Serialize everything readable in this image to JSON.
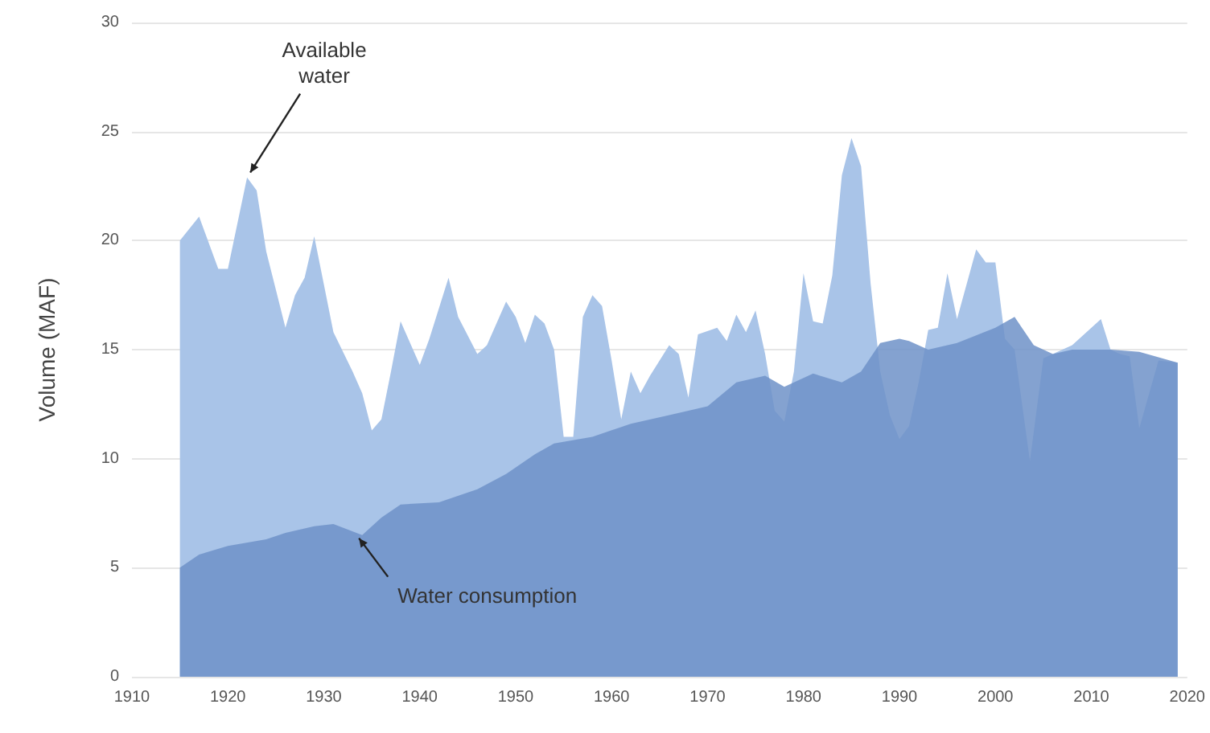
{
  "chart_data": {
    "type": "area",
    "ylabel": "Volume (MAF)",
    "xlim": [
      1910,
      2020
    ],
    "xticks": [
      1910,
      1920,
      1930,
      1940,
      1950,
      1960,
      1970,
      1980,
      1990,
      2000,
      2010,
      2020
    ],
    "ylim": [
      0,
      30
    ],
    "yticks": [
      0,
      5,
      10,
      15,
      20,
      25,
      30
    ],
    "grid": "y",
    "annotations": [
      {
        "text": "Available\nwater",
        "x": 1922,
        "y": 22.9
      },
      {
        "text": "Water consumption",
        "x": 1934,
        "y": 6.5
      }
    ],
    "series": [
      {
        "color": "#a9c4e8",
        "x": [
          1915,
          1917,
          1919,
          1920,
          1922,
          1923,
          1924,
          1926,
          1927,
          1928,
          1929,
          1930,
          1931,
          1933,
          1934,
          1935,
          1936,
          1937,
          1938,
          1940,
          1941,
          1943,
          1944,
          1946,
          1947,
          1949,
          1950,
          1951,
          1952,
          1953,
          1954,
          1955,
          1956,
          1957,
          1958,
          1959,
          1960,
          1961,
          1962,
          1963,
          1964,
          1965,
          1966,
          1967,
          1968,
          1969,
          1971,
          1972,
          1973,
          1974,
          1975,
          1976,
          1977,
          1978,
          1979,
          1980,
          1981,
          1982,
          1983,
          1984,
          1985,
          1986,
          1987,
          1988,
          1989,
          1990,
          1991,
          1992,
          1993,
          1994,
          1995,
          1996,
          1998,
          1999,
          2000,
          2001,
          2002,
          2003.6,
          2005,
          2008,
          2011,
          2012,
          2013,
          2014,
          2015,
          2017,
          2019
        ],
        "values": [
          20,
          21.1,
          18.7,
          18.7,
          22.9,
          22.3,
          19.5,
          16,
          17.5,
          18.3,
          20.2,
          18,
          15.8,
          14,
          13,
          11.3,
          11.8,
          14,
          16.3,
          14.3,
          15.5,
          18.3,
          16.5,
          14.8,
          15.2,
          17.2,
          16.5,
          15.3,
          16.6,
          16.2,
          15,
          11,
          11,
          16.5,
          17.5,
          17,
          14.5,
          11.8,
          14,
          13,
          13.8,
          14.5,
          15.2,
          14.8,
          12.8,
          15.7,
          16,
          15.4,
          16.6,
          15.8,
          16.8,
          14.8,
          12.2,
          11.7,
          14,
          18.5,
          16.3,
          16.2,
          18.4,
          23,
          24.7,
          23.4,
          18,
          14,
          12,
          10.9,
          11.5,
          13.5,
          15.9,
          16,
          18.5,
          16.4,
          19.6,
          19,
          19,
          15.5,
          15,
          9.9,
          14.6,
          15.2,
          16.4,
          15,
          14.8,
          14.7,
          11.4,
          14.5,
          14.4
        ]
      },
      {
        "color": "#6e92c8",
        "x": [
          1915,
          1917,
          1920,
          1924,
          1926,
          1929,
          1931,
          1934,
          1936,
          1938,
          1942,
          1946,
          1949,
          1952,
          1954,
          1958,
          1962,
          1966,
          1970,
          1973,
          1976,
          1978,
          1981,
          1984,
          1986,
          1988,
          1990,
          1991,
          1993,
          1996,
          2000,
          2002,
          2004,
          2006,
          2008,
          2012,
          2015,
          2019
        ],
        "values": [
          5,
          5.6,
          6,
          6.3,
          6.6,
          6.9,
          7,
          6.5,
          7.3,
          7.9,
          8,
          8.6,
          9.3,
          10.2,
          10.7,
          11,
          11.6,
          12,
          12.4,
          13.5,
          13.8,
          13.3,
          13.9,
          13.5,
          14,
          15.3,
          15.5,
          15.4,
          15,
          15.3,
          16,
          16.5,
          15.2,
          14.8,
          15,
          15,
          14.9,
          14.4
        ]
      }
    ]
  }
}
